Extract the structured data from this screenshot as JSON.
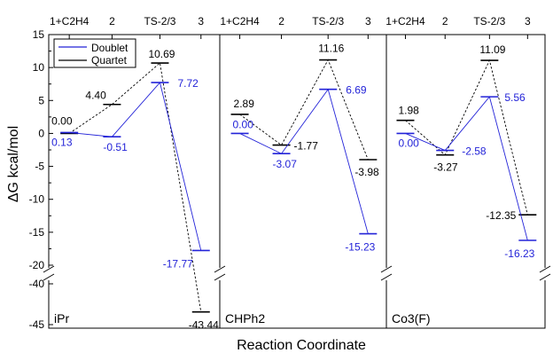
{
  "chart_data": {
    "type": "line",
    "title": "",
    "ylabel": "ΔG kcal/mol",
    "xlabel": "Reaction Coordinate",
    "categories": [
      "1+C2H4",
      "2",
      "TS-2/3",
      "3"
    ],
    "ylim_upper": [
      -20,
      15
    ],
    "ylim_lower": [
      -45,
      -40
    ],
    "yticks_upper": [
      15,
      10,
      5,
      0,
      -5,
      -10,
      -15,
      -20
    ],
    "yticks_lower": [
      -40,
      -45
    ],
    "ytick_labels_upper": [
      "15",
      "10",
      "5",
      "0",
      "-5",
      "-10",
      "-15",
      "-20"
    ],
    "ytick_labels_lower": [
      "-40",
      "-45"
    ],
    "legend": {
      "position": "top-left",
      "entries": [
        "Doublet",
        "Quartet"
      ]
    },
    "colors": {
      "doublet": "#2323d8",
      "quartet": "#000000"
    },
    "panels": [
      {
        "name": "iPr",
        "series": [
          {
            "name": "Doublet",
            "values": [
              0.13,
              -0.51,
              7.72,
              -17.77
            ],
            "labels": [
              "0.13",
              "-0.51",
              "7.72",
              "-17.77"
            ]
          },
          {
            "name": "Quartet",
            "values": [
              0.0,
              4.4,
              10.69,
              -43.44
            ],
            "labels": [
              "0.00",
              "4.40",
              "10.69",
              "-43.44"
            ]
          }
        ]
      },
      {
        "name": "CHPh2",
        "series": [
          {
            "name": "Doublet",
            "values": [
              0.0,
              -3.07,
              6.69,
              -15.23
            ],
            "labels": [
              "0.00",
              "-3.07",
              "6.69",
              "-15.23"
            ]
          },
          {
            "name": "Quartet",
            "values": [
              2.89,
              -1.77,
              11.16,
              -3.98
            ],
            "labels": [
              "2.89",
              "-1.77",
              "11.16",
              "-3.98"
            ]
          }
        ]
      },
      {
        "name": "Co3(F)",
        "series": [
          {
            "name": "Doublet",
            "values": [
              0.0,
              -2.58,
              5.56,
              -16.23
            ],
            "labels": [
              "0.00",
              "-2.58",
              "5.56",
              "-16.23"
            ]
          },
          {
            "name": "Quartet",
            "values": [
              1.98,
              -3.27,
              11.09,
              -12.35
            ],
            "labels": [
              "1.98",
              "-3.27",
              "11.09",
              "-12.35"
            ]
          }
        ]
      }
    ]
  }
}
